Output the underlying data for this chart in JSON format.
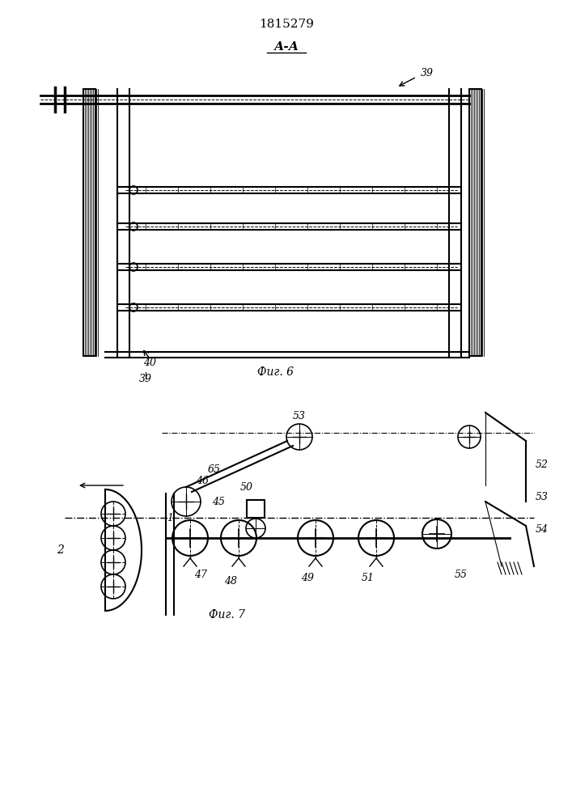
{
  "title": "1815279",
  "fig_label_top": "А-А",
  "fig6_label": "Фиг. 6",
  "fig7_label": "Фиг. 7",
  "bg_color": "#ffffff",
  "line_color": "#000000",
  "line_width": 1.2,
  "fig_width": 7.07,
  "fig_height": 10.0
}
